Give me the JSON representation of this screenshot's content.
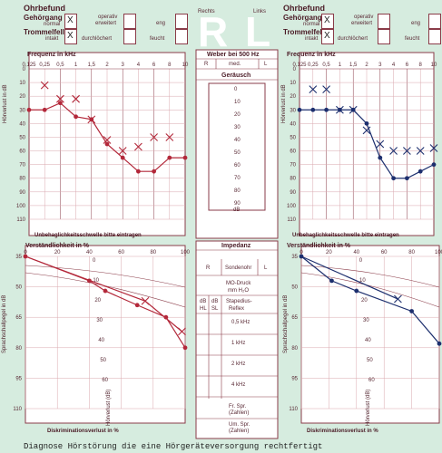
{
  "header": {
    "title_left": "Ohrbefund",
    "title_right": "Ohrbefund",
    "rechts": "Rechts",
    "links": "Links",
    "letter_r": "R",
    "letter_l": "L",
    "gehoergang": "Gehörgang",
    "normal": "normal",
    "operativ": "operativ",
    "erweitert": "erweitert",
    "eng": "eng",
    "trommelfell": "Trommelfell",
    "intakt": "intakt",
    "durchloechert": "durchlöchert",
    "feucht": "feucht",
    "x_mark": "X"
  },
  "audiogram": {
    "freq_title": "Frequenz in kHz",
    "freq_ticks": [
      "0,125",
      "0,25",
      "0,5",
      "1",
      "1,5",
      "2",
      "3",
      "4",
      "6",
      "8",
      "10"
    ],
    "db_ticks": [
      "0",
      "10",
      "20",
      "30",
      "40",
      "50",
      "60",
      "70",
      "80",
      "90",
      "100",
      "110"
    ],
    "ylabel": "Hörverlust in dB",
    "footer": "Unbehaglichkeitsschwelle bitte eintragen"
  },
  "weber": {
    "title": "Weber bei 500 Hz",
    "r": "R",
    "med": "med.",
    "l": "L",
    "geraeusch": "Geräusch",
    "levels": [
      "0",
      "10",
      "20",
      "30",
      "40",
      "50",
      "60",
      "70",
      "80",
      "90"
    ],
    "unit": "dB"
  },
  "speech": {
    "title": "Verständlichkeit in %",
    "x_ticks": [
      "0",
      "20",
      "40",
      "60",
      "80",
      "100"
    ],
    "y_ticks": [
      "35",
      "50",
      "65",
      "80",
      "95",
      "110"
    ],
    "ylabel": "Sprachschallpegel in dB",
    "footer": "Diskriminationsverlust in %",
    "curve_ticks": [
      "0",
      "10",
      "20",
      "30",
      "40",
      "50",
      "60"
    ],
    "curve_label": "Hörverlust (dB)"
  },
  "impedanz": {
    "title": "Impedanz",
    "r": "R",
    "sondenohr": "Sondenohr",
    "l": "L",
    "mo_druck": "MO-Druck",
    "mm_h2o": "mm H₂O",
    "db": "dB",
    "hl": "HL",
    "sl": "SL",
    "stapedius": "Stapedius-",
    "reflex": "Reflex",
    "rows": [
      "0,5 kHz",
      "1 kHz",
      "2 kHz",
      "4 kHz"
    ],
    "fr_spr": "Fr. Spr.",
    "um_spr": "Um. Spr.",
    "zahlen": "(Zahlen)"
  },
  "diagnosis": "Diagnose Hörstörung die eine Hörgeräteversorgung rechtfertigt"
}
